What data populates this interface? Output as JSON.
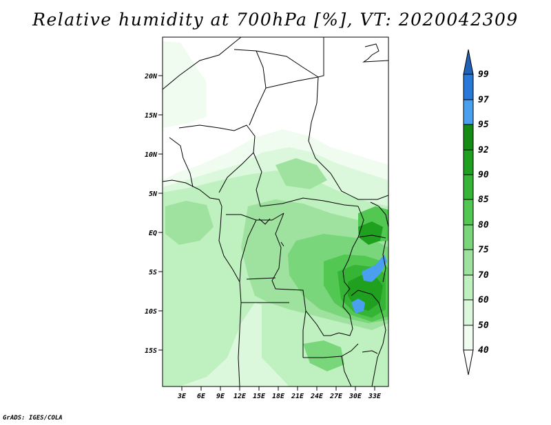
{
  "title": "Relative humidity at 700hPa [%], VT: 2020042309",
  "footer": "GrADS: IGES/COLA",
  "lat_labels": [
    "20N",
    "15N",
    "10N",
    "5N",
    "EQ",
    "5S",
    "10S",
    "15S"
  ],
  "lon_labels": [
    "3E",
    "6E",
    "9E",
    "12E",
    "15E",
    "18E",
    "21E",
    "24E",
    "27E",
    "30E",
    "33E"
  ],
  "colorbar": {
    "levels": [
      "99",
      "97",
      "95",
      "92",
      "90",
      "85",
      "80",
      "75",
      "70",
      "60",
      "50",
      "40"
    ],
    "colors": {
      "above_99": "#1f62b8",
      "97_99": "#2a78d8",
      "95_97": "#4aa0ee",
      "92_95": "#148c14",
      "90_92": "#1fa01f",
      "85_90": "#35b435",
      "80_85": "#52c852",
      "75_80": "#7ad67a",
      "70_75": "#9fe29f",
      "60_70": "#bff0bf",
      "50_60": "#dcf8dc",
      "40_50": "#effcef",
      "below_40": "#ffffff"
    }
  }
}
